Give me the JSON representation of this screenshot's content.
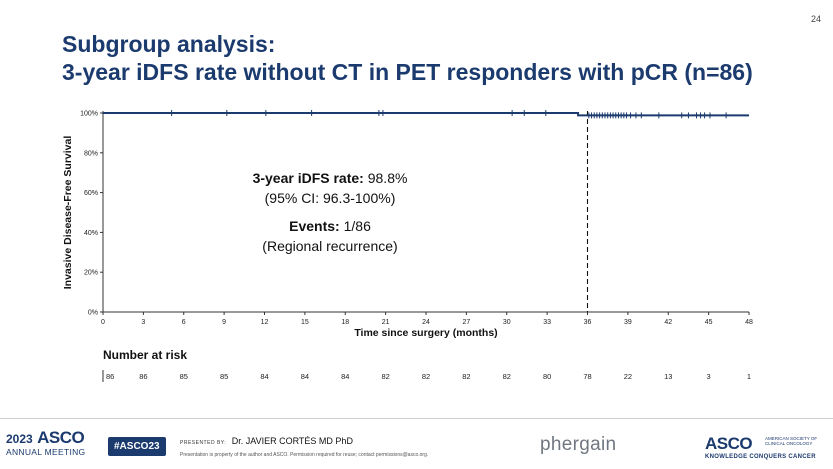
{
  "slide": {
    "page_number": "24",
    "title_line1": "Subgroup analysis:",
    "title_line2": "3-year iDFS rate without CT in PET responders with pCR (n=86)"
  },
  "annotation": {
    "rate_label": "3-year iDFS rate:",
    "rate_value": "98.8%",
    "ci": "(95% CI: 96.3-100%)",
    "events_label": "Events:",
    "events_value": "1/86",
    "events_detail": "(Regional recurrence)"
  },
  "number_at_risk": {
    "label": "Number at risk",
    "times": [
      0,
      3,
      6,
      9,
      12,
      15,
      18,
      21,
      24,
      27,
      30,
      33,
      36,
      39,
      42,
      45,
      48
    ],
    "values": [
      "86",
      "86",
      "85",
      "85",
      "84",
      "84",
      "84",
      "82",
      "82",
      "82",
      "82",
      "80",
      "78",
      "22",
      "13",
      "3",
      "1"
    ]
  },
  "footer": {
    "year": "2023",
    "asco": "ASCO",
    "annual_meeting": "ANNUAL MEETING",
    "hashtag": "#ASCO23",
    "presented_by": "PRESENTED BY:",
    "presenter": "Dr. JAVIER CORTÉS MD PhD",
    "notice": "Presentation is property of the author and ASCO. Permission required for reuse; contact permissions@asco.org.",
    "sponsor": "phergain",
    "asco_right": "ASCO",
    "society": "AMERICAN SOCIETY OF CLINICAL ONCOLOGY",
    "tagline": "KNOWLEDGE CONQUERS CANCER"
  },
  "chart_data": {
    "type": "line",
    "step": true,
    "title": "",
    "xlabel": "Time since surgery (months)",
    "ylabel": "Invasive Disease-Free Survival",
    "xlim": [
      0,
      48
    ],
    "ylim": [
      0,
      100
    ],
    "x_ticks": [
      0,
      3,
      6,
      9,
      12,
      15,
      18,
      21,
      24,
      27,
      30,
      33,
      36,
      39,
      42,
      45,
      48
    ],
    "y_ticks": [
      "0%",
      "20%",
      "40%",
      "60%",
      "80%",
      "100%"
    ],
    "y_tick_values": [
      0,
      20,
      40,
      60,
      80,
      100
    ],
    "grid": false,
    "line_color": "#1b3a6e",
    "series": [
      {
        "x": [
          0,
          35.3,
          35.3,
          48
        ],
        "y": [
          100,
          100,
          98.8,
          98.8
        ]
      }
    ],
    "censor_x": [
      5.1,
      9.2,
      12.1,
      15.5,
      20.5,
      20.8,
      30.4,
      31.3,
      32.9,
      36.1,
      36.3,
      36.5,
      36.7,
      36.9,
      37.1,
      37.3,
      37.5,
      37.7,
      37.9,
      38.1,
      38.3,
      38.5,
      38.7,
      38.9,
      39.2,
      39.6,
      40.0,
      41.3,
      43.0,
      43.5,
      44.1,
      44.4,
      44.7,
      45.1,
      46.3
    ],
    "reference_x": 36
  }
}
